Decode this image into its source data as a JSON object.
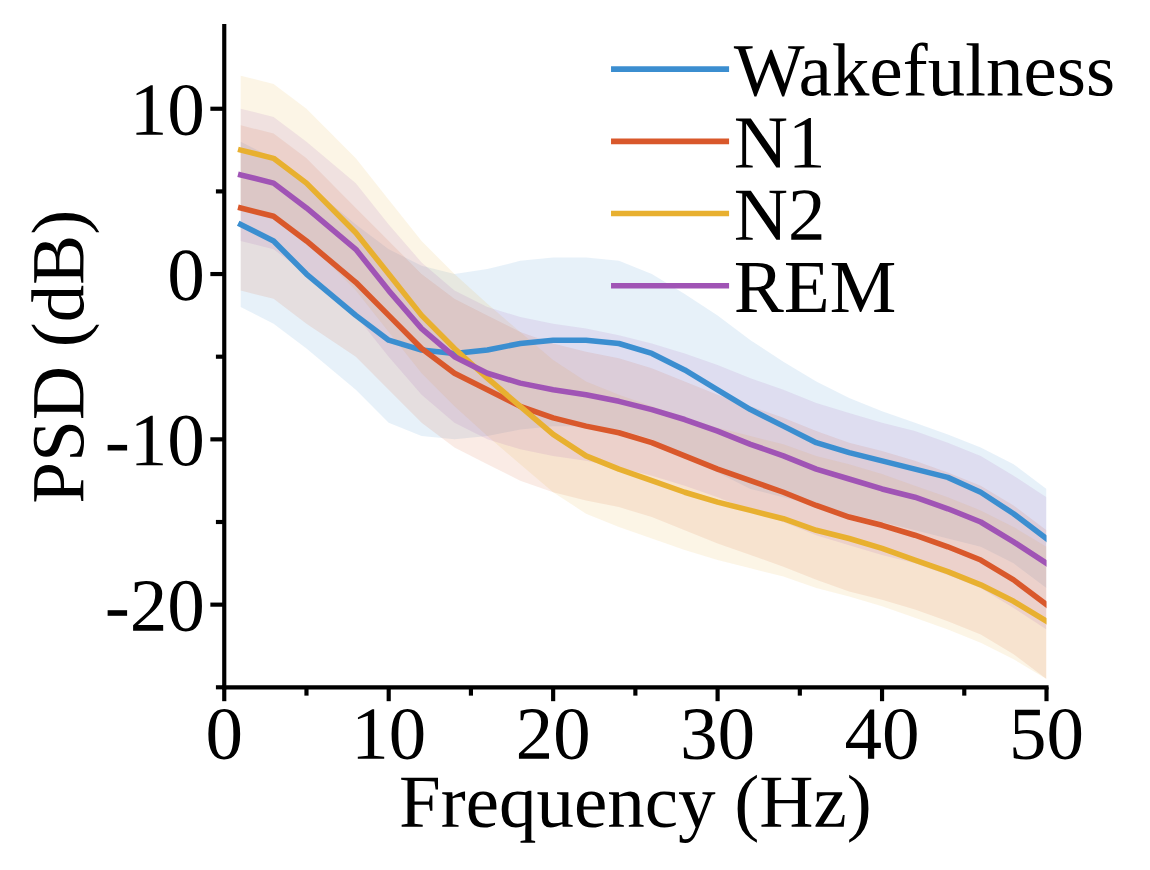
{
  "chart_data": {
    "type": "line",
    "xlabel": "Frequency (Hz)",
    "ylabel": "PSD (dB)",
    "xlim": [
      0,
      50
    ],
    "ylim": [
      -25,
      15
    ],
    "xticks": [
      0,
      {
        "value": 5,
        "label": null
      },
      10,
      {
        "value": 15,
        "label": null
      },
      20,
      {
        "value": 25,
        "label": null
      },
      30,
      {
        "value": 35,
        "label": null
      },
      40,
      {
        "value": 45,
        "label": null
      },
      50
    ],
    "yticks": [
      {
        "value": -25,
        "label": null
      },
      -20,
      {
        "value": -15,
        "label": null
      },
      -10,
      {
        "value": -5,
        "label": null
      },
      0,
      {
        "value": 5,
        "label": null
      },
      10
    ],
    "grid": false,
    "legend": "top right",
    "marker": "none",
    "line_style": "solid",
    "x": [
      1,
      3,
      5,
      8,
      10,
      12,
      14,
      16,
      18,
      20,
      22,
      24,
      26,
      28,
      30,
      32,
      34,
      36,
      38,
      40,
      42,
      44,
      46,
      48,
      50
    ],
    "series": [
      {
        "name": "Wakefulness",
        "color": "#3b8ed0",
        "values": [
          3,
          2,
          0,
          -2.5,
          -4,
          -4.6,
          -4.8,
          -4.6,
          -4.2,
          -4,
          -4,
          -4.2,
          -4.8,
          -5.8,
          -7,
          -8.2,
          -9.2,
          -10.2,
          -10.8,
          -11.3,
          -11.8,
          -12.3,
          -13.2,
          -14.5,
          -16
        ],
        "upper": [
          8,
          7,
          5.5,
          3,
          1.5,
          0.5,
          0,
          0.3,
          0.8,
          1,
          1,
          0.8,
          0,
          -1.2,
          -2.5,
          -4,
          -5.3,
          -6.5,
          -7.5,
          -8.3,
          -9,
          -9.7,
          -10.5,
          -11.5,
          -13
        ],
        "lower": [
          -2,
          -3,
          -4.5,
          -7,
          -9,
          -9.8,
          -10,
          -9.8,
          -9.4,
          -9.2,
          -9.2,
          -9.4,
          -10,
          -11,
          -12,
          -13,
          -13.5,
          -14,
          -14.5,
          -15,
          -15.5,
          -16,
          -16.5,
          -17.5,
          -19
        ]
      },
      {
        "name": "N1",
        "color": "#d9582b",
        "values": [
          4,
          3.5,
          2,
          -0.5,
          -2.5,
          -4.5,
          -6,
          -7,
          -8,
          -8.7,
          -9.2,
          -9.6,
          -10.2,
          -11,
          -11.8,
          -12.5,
          -13.2,
          -14,
          -14.7,
          -15.2,
          -15.8,
          -16.5,
          -17.3,
          -18.5,
          -20
        ],
        "upper": [
          9,
          8.5,
          7,
          4,
          2,
          0,
          -1.5,
          -2.5,
          -3.5,
          -4.2,
          -4.7,
          -5.1,
          -5.7,
          -6.5,
          -7.3,
          -8,
          -8.7,
          -9.5,
          -10.2,
          -10.7,
          -11.3,
          -12,
          -12.8,
          -14,
          -15.5
        ],
        "lower": [
          -1,
          -1.5,
          -3,
          -5,
          -7,
          -9,
          -10.5,
          -11.5,
          -12.5,
          -13.2,
          -13.7,
          -14.1,
          -14.7,
          -15.5,
          -16.3,
          -17,
          -17.7,
          -18.5,
          -19.2,
          -19.7,
          -20.3,
          -21,
          -21.8,
          -23,
          -24.5
        ]
      },
      {
        "name": "N2",
        "color": "#e8b030",
        "values": [
          7.5,
          7,
          5.5,
          2.5,
          0,
          -2.5,
          -4.5,
          -6.3,
          -8,
          -9.7,
          -11,
          -11.8,
          -12.5,
          -13.2,
          -13.8,
          -14.3,
          -14.8,
          -15.5,
          -16,
          -16.6,
          -17.3,
          -18,
          -18.8,
          -19.8,
          -21
        ],
        "upper": [
          12,
          11.5,
          10,
          7,
          4.5,
          2,
          0,
          -1.8,
          -3.5,
          -5.2,
          -6.5,
          -7.3,
          -8,
          -8.7,
          -9.3,
          -9.8,
          -10.3,
          -11,
          -11.5,
          -12.1,
          -12.8,
          -13.5,
          -14.3,
          -15.3,
          -16.5
        ],
        "lower": [
          4,
          3.5,
          2,
          -1,
          -3.5,
          -6,
          -8,
          -9.8,
          -11.5,
          -13.2,
          -14.5,
          -15.3,
          -16,
          -16.7,
          -17.3,
          -17.8,
          -18.3,
          -19,
          -19.5,
          -20.1,
          -20.8,
          -21.5,
          -22.3,
          -23.3,
          -24.5
        ]
      },
      {
        "name": "REM",
        "color": "#a054b5",
        "values": [
          6,
          5.5,
          4,
          1.5,
          -1,
          -3.3,
          -5,
          -6,
          -6.6,
          -7,
          -7.3,
          -7.7,
          -8.2,
          -8.8,
          -9.5,
          -10.3,
          -11,
          -11.8,
          -12.4,
          -13,
          -13.5,
          -14.2,
          -15,
          -16.2,
          -17.5
        ],
        "upper": [
          10,
          9.5,
          8,
          5.5,
          3,
          0.7,
          -1,
          -2,
          -2.6,
          -3,
          -3.3,
          -3.7,
          -4.2,
          -4.8,
          -5.5,
          -6.3,
          -7,
          -7.8,
          -8.4,
          -9,
          -9.5,
          -10.2,
          -11,
          -12.2,
          -13.5
        ],
        "lower": [
          2,
          1.5,
          0,
          -2.5,
          -5,
          -7.3,
          -9,
          -10,
          -10.6,
          -11,
          -11.3,
          -11.7,
          -12.2,
          -12.8,
          -13.5,
          -14.3,
          -15,
          -15.8,
          -16.4,
          -17,
          -17.5,
          -18.2,
          -19,
          -20.2,
          -21.5
        ]
      }
    ]
  }
}
